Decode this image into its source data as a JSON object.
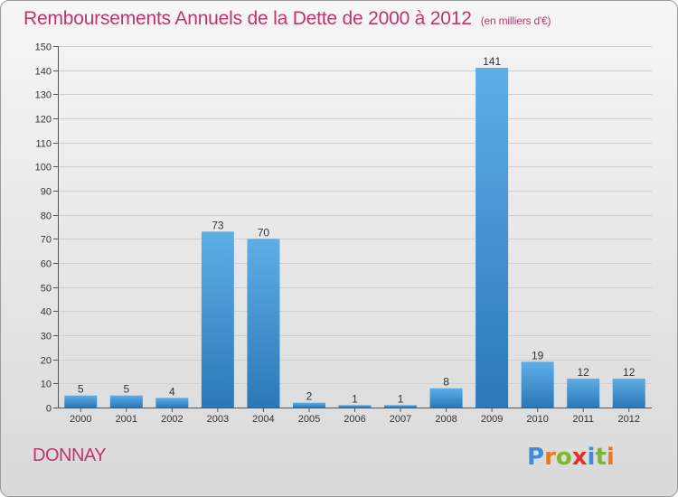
{
  "title": "Remboursements Annuels de la Dette de 2000 à 2012",
  "unit": "(en milliers d'€)",
  "commune": "DONNAY",
  "logo": {
    "letters": [
      "P",
      "r",
      "o",
      "x",
      "i",
      "t",
      "i"
    ],
    "colors": [
      "#3a8fd8",
      "#e87a1c",
      "#7cb82f",
      "#e2312d",
      "#3a8fd8",
      "#7cb82f",
      "#e87a1c"
    ]
  },
  "colors": {
    "accent": "#c2336f",
    "bar_top": "#5eaee6",
    "bar_bottom": "#2a78b8"
  },
  "chart_data": {
    "type": "bar",
    "categories": [
      "2000",
      "2001",
      "2002",
      "2003",
      "2004",
      "2005",
      "2006",
      "2007",
      "2008",
      "2009",
      "2010",
      "2011",
      "2012"
    ],
    "values": [
      5,
      5,
      4,
      73,
      70,
      2,
      1,
      1,
      8,
      141,
      19,
      12,
      12
    ],
    "ylim": [
      0,
      150
    ],
    "yticks": [
      0,
      10,
      20,
      30,
      40,
      50,
      60,
      70,
      80,
      90,
      100,
      110,
      120,
      130,
      140,
      150
    ],
    "grid": true,
    "data_labels": true
  }
}
